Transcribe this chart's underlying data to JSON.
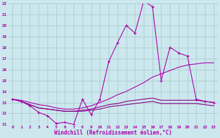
{
  "xlabel": "Windchill (Refroidissement éolien,°C)",
  "background_color": "#cce8ee",
  "grid_color": "#aacccc",
  "line_color": "#aa00aa",
  "line_color2": "#880088",
  "xlim": [
    -0.5,
    23.5
  ],
  "ylim": [
    11,
    22
  ],
  "yticks": [
    11,
    12,
    13,
    14,
    15,
    16,
    17,
    18,
    19,
    20,
    21,
    22
  ],
  "xticks": [
    0,
    1,
    2,
    3,
    4,
    5,
    6,
    7,
    8,
    9,
    10,
    11,
    12,
    13,
    14,
    15,
    16,
    17,
    18,
    19,
    20,
    21,
    22,
    23
  ],
  "curve1_x": [
    0,
    1,
    2,
    3,
    4,
    5,
    6,
    7,
    8,
    9,
    10,
    11,
    12,
    13,
    14,
    15,
    16,
    17,
    18,
    19,
    20,
    21,
    22,
    23
  ],
  "curve1_y": [
    13.3,
    13.1,
    12.7,
    12.1,
    11.8,
    11.1,
    11.2,
    11.0,
    13.3,
    11.9,
    13.3,
    16.7,
    18.4,
    20.0,
    19.3,
    22.2,
    21.7,
    15.0,
    18.0,
    17.5,
    17.2,
    13.3,
    13.1,
    13.0
  ],
  "curve2_x": [
    0,
    1,
    2,
    3,
    4,
    5,
    6,
    7,
    8,
    9,
    10,
    11,
    12,
    13,
    14,
    15,
    16,
    17,
    18,
    19,
    20,
    21,
    22,
    23
  ],
  "curve2_y": [
    13.3,
    13.2,
    13.0,
    12.8,
    12.7,
    12.5,
    12.4,
    12.4,
    12.5,
    12.7,
    13.0,
    13.3,
    13.7,
    14.0,
    14.4,
    14.8,
    15.3,
    15.6,
    15.9,
    16.2,
    16.4,
    16.5,
    16.6,
    16.6
  ],
  "curve3_x": [
    0,
    1,
    2,
    3,
    4,
    5,
    6,
    7,
    8,
    9,
    10,
    11,
    12,
    13,
    14,
    15,
    16,
    17,
    18,
    19,
    20,
    21,
    22,
    23
  ],
  "curve3_y": [
    13.3,
    13.1,
    12.8,
    12.5,
    12.4,
    12.3,
    12.2,
    12.2,
    12.3,
    12.4,
    12.6,
    12.8,
    12.9,
    13.1,
    13.2,
    13.3,
    13.4,
    13.2,
    13.2,
    13.2,
    13.2,
    13.2,
    13.1,
    13.0
  ],
  "curve4_x": [
    0,
    1,
    2,
    3,
    4,
    5,
    6,
    7,
    8,
    9,
    10,
    11,
    12,
    13,
    14,
    15,
    16,
    17,
    18,
    19,
    20,
    21,
    22,
    23
  ],
  "curve4_y": [
    13.3,
    13.1,
    12.8,
    12.5,
    12.4,
    12.3,
    12.2,
    12.2,
    12.2,
    12.3,
    12.4,
    12.6,
    12.7,
    12.8,
    12.9,
    13.0,
    13.1,
    12.9,
    12.9,
    12.9,
    12.9,
    12.9,
    12.8,
    12.7
  ]
}
